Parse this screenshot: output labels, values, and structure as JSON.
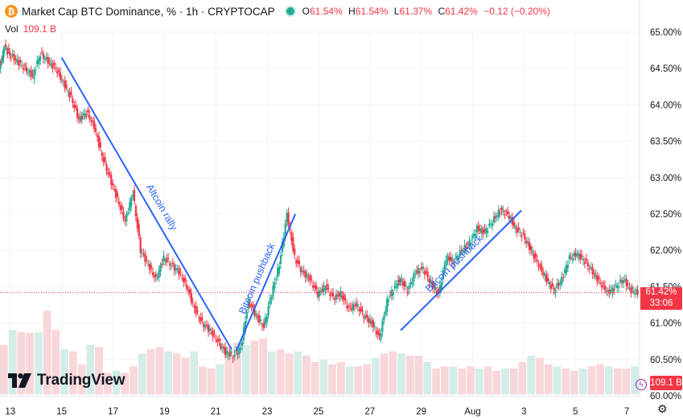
{
  "legend": {
    "icon": "₿",
    "title": "Market Cap BTC Dominance, % · 1h · CRYPTOCAP",
    "ohlc": [
      {
        "k": "O",
        "v": "61.54%"
      },
      {
        "k": "H",
        "v": "61.54%"
      },
      {
        "k": "L",
        "v": "61.37%"
      },
      {
        "k": "C",
        "v": "61.42%"
      }
    ],
    "change": "−0.12 (−0.20%)",
    "up_color": "#22ab94",
    "down_color": "#f23645"
  },
  "volume": {
    "label": "Vol",
    "value": "109.1 B"
  },
  "current_price": {
    "value": "61.42%",
    "countdown": "33:06"
  },
  "volume_badge": "109.1 B",
  "brand": {
    "name": "TradingView",
    "icon": "tradingview-logo"
  },
  "chart_data": {
    "type": "line",
    "title": "Market Cap BTC Dominance, % · 1h · CRYPTOCAP",
    "ylim": [
      60.0,
      65.0
    ],
    "y_ticks": [
      "65.00%",
      "64.50%",
      "64.00%",
      "63.50%",
      "63.00%",
      "62.50%",
      "62.00%",
      "61.50%",
      "61.00%",
      "60.50%",
      "60.00%"
    ],
    "y_tick_values": [
      65.0,
      64.5,
      64.0,
      63.5,
      63.0,
      62.5,
      62.0,
      61.5,
      61.0,
      60.5,
      60.0
    ],
    "x_ticks": [
      "13",
      "15",
      "17",
      "19",
      "21",
      "23",
      "25",
      "27",
      "29",
      "Aug",
      "3",
      "5",
      "7"
    ],
    "x_tick_days": [
      13,
      15,
      17,
      19,
      21,
      23,
      25,
      27,
      29,
      31,
      33,
      35,
      37
    ],
    "xlim_days": [
      12.6,
      37.5
    ],
    "series": [
      {
        "name": "BTC Dominance",
        "x_days": [
          12.6,
          12.8,
          13.0,
          13.3,
          13.6,
          13.9,
          14.2,
          14.5,
          14.8,
          15.1,
          15.4,
          15.7,
          16.0,
          16.3,
          16.6,
          16.9,
          17.2,
          17.5,
          17.8,
          18.1,
          18.4,
          18.7,
          19.0,
          19.3,
          19.6,
          19.9,
          20.2,
          20.5,
          20.8,
          21.1,
          21.4,
          21.7,
          22.0,
          22.3,
          22.6,
          22.9,
          23.2,
          23.5,
          23.8,
          24.1,
          24.4,
          24.7,
          25.0,
          25.3,
          25.6,
          25.9,
          26.2,
          26.5,
          26.8,
          27.1,
          27.4,
          27.7,
          28.0,
          28.2,
          28.5,
          28.8,
          29.1,
          29.4,
          29.7,
          30.0,
          30.3,
          30.6,
          30.9,
          31.2,
          31.5,
          31.8,
          32.1,
          32.4,
          32.7,
          33.0,
          33.3,
          33.6,
          33.9,
          34.2,
          34.5,
          34.8,
          35.1,
          35.4,
          35.7,
          36.0,
          36.3,
          36.6,
          36.9,
          37.2,
          37.45
        ],
        "values": [
          64.5,
          64.8,
          64.7,
          64.6,
          64.5,
          64.4,
          64.7,
          64.6,
          64.5,
          64.3,
          64.1,
          63.8,
          63.9,
          63.7,
          63.3,
          63.0,
          62.7,
          62.4,
          62.8,
          62.0,
          61.8,
          61.6,
          61.9,
          61.8,
          61.7,
          61.5,
          61.2,
          61.0,
          60.9,
          60.75,
          60.6,
          60.55,
          60.65,
          61.3,
          61.1,
          60.95,
          61.4,
          61.8,
          62.5,
          61.9,
          61.7,
          61.6,
          61.4,
          61.5,
          61.35,
          61.4,
          61.2,
          61.25,
          61.1,
          61.0,
          60.8,
          61.3,
          61.5,
          61.6,
          61.45,
          61.7,
          61.75,
          61.55,
          61.4,
          61.9,
          61.85,
          62.0,
          62.1,
          62.3,
          62.25,
          62.4,
          62.55,
          62.5,
          62.3,
          62.2,
          62.0,
          61.8,
          61.6,
          61.45,
          61.6,
          61.9,
          61.95,
          61.85,
          61.7,
          61.55,
          61.42,
          61.5,
          61.6,
          61.45,
          61.42
        ]
      }
    ],
    "volume_bars": [
      46,
      60,
      58,
      57,
      58,
      78,
      60,
      42,
      40,
      28,
      46,
      44,
      20,
      22,
      20,
      26,
      38,
      42,
      44,
      40,
      38,
      34,
      40,
      26,
      24,
      28,
      44,
      48,
      46,
      50,
      52,
      40,
      42,
      38,
      40,
      36,
      30,
      32,
      28,
      30,
      26,
      26,
      28,
      34,
      38,
      40,
      38,
      36,
      36,
      30,
      24,
      26,
      26,
      24,
      26,
      24,
      26,
      22,
      24,
      24,
      30,
      36,
      34,
      28,
      26,
      24,
      22,
      24,
      26,
      28,
      26,
      24,
      24,
      26
    ],
    "annotations": [
      {
        "text": "Altcoin rally",
        "from": [
          15.0,
          64.65
        ],
        "to": [
          21.6,
          60.65
        ]
      },
      {
        "text": "Bitcoin pushback",
        "from": [
          21.8,
          60.62
        ],
        "to": [
          24.1,
          62.5
        ]
      },
      {
        "text": "Bitcoin pushback",
        "from": [
          28.2,
          60.9
        ],
        "to": [
          32.9,
          62.55
        ]
      }
    ],
    "current_value": 61.42,
    "current_label": "61.42%",
    "countdown": "33:06",
    "volume_label": "109.1 B"
  }
}
